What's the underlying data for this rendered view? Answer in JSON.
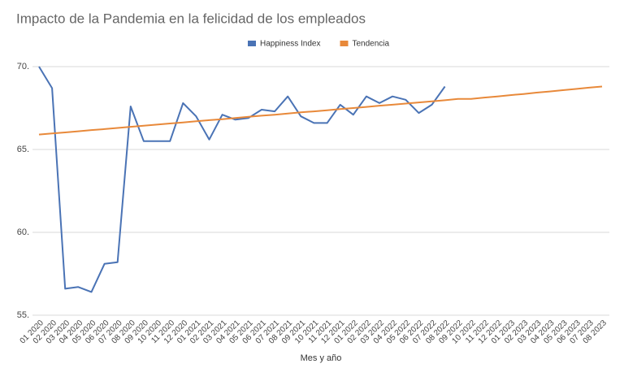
{
  "chart_data": {
    "type": "line",
    "title": "Impacto de la Pandemia en la felicidad de los empleados",
    "x_label": "Mes y año",
    "categories": [
      "01 2020",
      "02 2020",
      "03 2020",
      "04 2020",
      "05 2020",
      "06 2020",
      "07 2020",
      "08 2020",
      "09 2020",
      "10 2020",
      "11 2020",
      "12 2020",
      "01 2021",
      "02 2021",
      "03 2021",
      "04 2021",
      "05 2021",
      "06 2021",
      "07 2021",
      "08 2021",
      "09 2021",
      "10 2021",
      "11 2021",
      "12 2021",
      "01 2022",
      "02 2022",
      "03 2022",
      "04 2022",
      "05 2022",
      "06 2022",
      "07 2022",
      "08 2022",
      "09 2022",
      "10 2022",
      "11 2022",
      "12 2022",
      "01 2023",
      "02 2023",
      "03 2023",
      "04 2023",
      "05 2023",
      "06 2023",
      "07 2023",
      "08 2023"
    ],
    "series": [
      {
        "name": "Happiness Index",
        "color": "#4a73b5",
        "values": [
          70,
          68.7,
          56.6,
          56.7,
          56.4,
          58.1,
          58.2,
          67.6,
          65.5,
          65.5,
          65.5,
          67.8,
          67.0,
          65.6,
          67.1,
          66.8,
          66.9,
          67.4,
          67.3,
          68.2,
          67.0,
          66.6,
          66.6,
          67.7,
          67.1,
          68.2,
          67.8,
          68.2,
          68.0,
          67.2,
          67.7,
          68.8,
          null,
          null,
          null,
          null,
          null,
          null,
          null,
          null,
          null,
          null,
          null,
          null
        ]
      },
      {
        "name": "Tendencia",
        "color": "#e8893a",
        "values": [
          65.9,
          65.97,
          66.03,
          66.1,
          66.17,
          66.23,
          66.3,
          66.37,
          66.43,
          66.5,
          66.57,
          66.63,
          66.7,
          66.77,
          66.83,
          66.9,
          66.97,
          67.04,
          67.1,
          67.17,
          67.24,
          67.3,
          67.37,
          67.44,
          67.5,
          67.57,
          67.64,
          67.7,
          67.77,
          67.84,
          67.9,
          67.97,
          68.05,
          68.05,
          68.13,
          68.2,
          68.28,
          68.35,
          68.43,
          68.5,
          68.58,
          68.65,
          68.73,
          68.8
        ]
      }
    ],
    "ylim": [
      55,
      70
    ],
    "yticks": [
      {
        "value": 55,
        "label": "55."
      },
      {
        "value": 60,
        "label": "60."
      },
      {
        "value": 65,
        "label": "65."
      },
      {
        "value": 70,
        "label": "70."
      }
    ],
    "grid": true,
    "legend": "top"
  }
}
